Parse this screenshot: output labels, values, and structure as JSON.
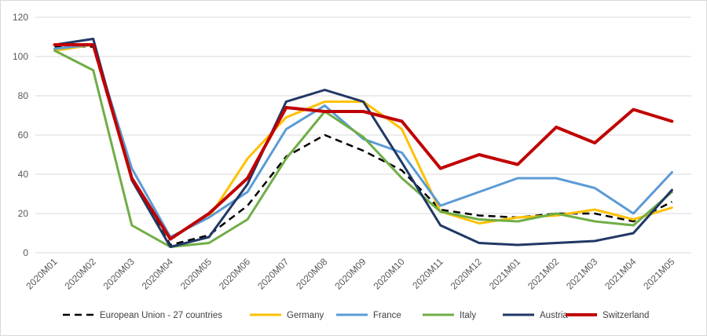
{
  "chart_data": {
    "type": "line",
    "title": "",
    "xlabel": "",
    "ylabel": "",
    "ylim": [
      0,
      120
    ],
    "yticks": [
      "0",
      "20",
      "40",
      "60",
      "80",
      "100",
      "120"
    ],
    "grid": "horizontal",
    "legend_position": "bottom",
    "categories": [
      "2020M01",
      "2020M02",
      "2020M03",
      "2020M04",
      "2020M05",
      "2020M06",
      "2020M07",
      "2020M08",
      "2020M09",
      "2020M10",
      "2020M11",
      "2020M12",
      "2021M01",
      "2021M02",
      "2021M03",
      "2021M04",
      "2021M05"
    ],
    "series": [
      {
        "name": "European Union - 27 countries",
        "color": "#000000",
        "dash": true,
        "values": [
          105,
          105,
          37,
          4,
          9,
          24,
          49,
          60,
          52,
          42,
          22,
          19,
          18,
          20,
          20,
          16,
          26
        ]
      },
      {
        "name": "Germany",
        "color": "#FFC000",
        "dash": false,
        "values": [
          103,
          106,
          37,
          8,
          18,
          48,
          69,
          77,
          77,
          63,
          21,
          15,
          18,
          19,
          22,
          17,
          23
        ]
      },
      {
        "name": "France",
        "color": "#5B9BD5",
        "dash": false,
        "values": [
          104,
          106,
          43,
          8,
          18,
          31,
          63,
          75,
          58,
          51,
          24,
          31,
          38,
          38,
          33,
          20,
          41
        ]
      },
      {
        "name": "Italy",
        "color": "#70AD47",
        "dash": false,
        "values": [
          103,
          93,
          14,
          3,
          5,
          17,
          48,
          72,
          59,
          38,
          21,
          17,
          16,
          20,
          16,
          14,
          31
        ]
      },
      {
        "name": "Austria",
        "color": "#203864",
        "dash": false,
        "values": [
          106,
          109,
          37,
          3,
          8,
          35,
          77,
          83,
          77,
          46,
          14,
          5,
          4,
          5,
          6,
          10,
          32
        ]
      },
      {
        "name": "Switzerland",
        "color": "#C00000",
        "dash": false,
        "values": [
          106,
          106,
          38,
          7,
          20,
          38,
          74,
          72,
          72,
          67,
          43,
          50,
          45,
          64,
          56,
          73,
          67
        ]
      }
    ]
  }
}
